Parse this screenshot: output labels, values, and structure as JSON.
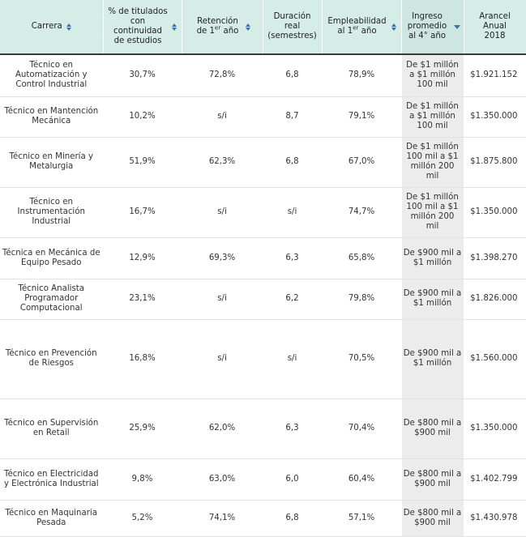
{
  "header": {
    "carrera": "Carrera",
    "titulados": "% de titulados con continuidad de estudios",
    "retencion_prefix": "Retención de 1",
    "retencion_sup": "er",
    "retencion_suffix": " año",
    "duracion": "Duración real (semestres)",
    "empleabilidad_prefix": "Empleabilidad al 1",
    "empleabilidad_sup": "er",
    "empleabilidad_suffix": " año",
    "ingreso": "Ingreso promedio al 4° año",
    "arancel": "Arancel Anual 2018"
  },
  "rows": [
    {
      "carrera": "Técnico en Automatización y Control Industrial",
      "titulados": "30,7%",
      "retencion": "72,8%",
      "duracion": "6,8",
      "empleabilidad": "78,9%",
      "ingreso": "De $1 millón a $1 millón 100 mil",
      "arancel": "$1.921.152"
    },
    {
      "carrera": "Técnico en Mantención Mecánica",
      "titulados": "10,2%",
      "retencion": "s/i",
      "duracion": "8,7",
      "empleabilidad": "79,1%",
      "ingreso": "De $1 millón a $1 millón 100 mil",
      "arancel": "$1.350.000"
    },
    {
      "carrera": "Técnico en Minería y Metalurgia",
      "titulados": "51,9%",
      "retencion": "62,3%",
      "duracion": "6,8",
      "empleabilidad": "67,0%",
      "ingreso": "De $1 millón 100 mil a $1 millón 200 mil",
      "arancel": "$1.875.800"
    },
    {
      "carrera": "Técnico en Instrumentación Industrial",
      "titulados": "16,7%",
      "retencion": "s/i",
      "duracion": "s/i",
      "empleabilidad": "74,7%",
      "ingreso": "De $1 millón 100 mil a $1 millón 200 mil",
      "arancel": "$1.350.000"
    },
    {
      "carrera": "Técnica en Mecánica de Equipo Pesado",
      "titulados": "12,9%",
      "retencion": "69,3%",
      "duracion": "6,3",
      "empleabilidad": "65,8%",
      "ingreso": "De $900 mil a $1 millón",
      "arancel": "$1.398.270"
    },
    {
      "carrera": "Técnico Analista Programador Computacional",
      "titulados": "23,1%",
      "retencion": "s/i",
      "duracion": "6,2",
      "empleabilidad": "79,8%",
      "ingreso": "De $900 mil a $1 millón",
      "arancel": "$1.826.000"
    },
    {
      "carrera": "Técnico en Prevención de Riesgos",
      "titulados": "16,8%",
      "retencion": "s/i",
      "duracion": "s/i",
      "empleabilidad": "70,5%",
      "ingreso": "De $900 mil a $1 millón",
      "arancel": "$1.560.000"
    },
    {
      "carrera": "Técnico en Supervisión en Retail",
      "titulados": "25,9%",
      "retencion": "62,0%",
      "duracion": "6,3",
      "empleabilidad": "70,4%",
      "ingreso": "De $800 mil a $900 mil",
      "arancel": "$1.350.000"
    },
    {
      "carrera": "Técnico en Electricidad y Electrónica Industrial",
      "titulados": "9,8%",
      "retencion": "63,0%",
      "duracion": "6,0",
      "empleabilidad": "60,4%",
      "ingreso": "De $800 mil a $900 mil",
      "arancel": "$1.402.799"
    },
    {
      "carrera": "Técnico en Maquinaria Pesada",
      "titulados": "5,2%",
      "retencion": "74,1%",
      "duracion": "6,8",
      "empleabilidad": "57,1%",
      "ingreso": "De $800 mil a $900 mil",
      "arancel": "$1.430.978"
    }
  ],
  "colors": {
    "header_bg": "#d6ece7",
    "sort_icon": "#3f6fb0",
    "income_col_bg": "#ececec"
  },
  "icons": {
    "sortable": "sort-up-down-icon",
    "sorted_desc": "sort-desc-icon"
  }
}
